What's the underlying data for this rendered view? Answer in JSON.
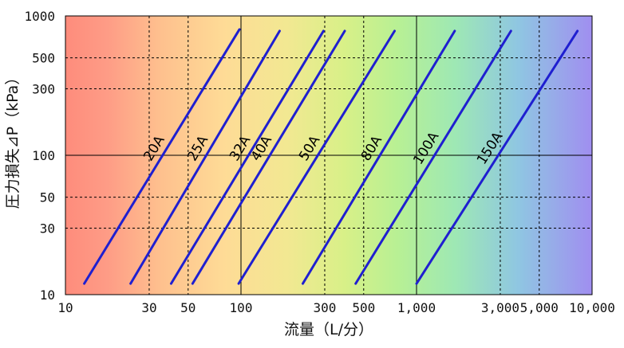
{
  "chart_data": {
    "type": "line",
    "xlabel": "流量（L/分）",
    "ylabel": "圧力損失⊿P（kPa）",
    "x_scale": "log",
    "y_scale": "log",
    "xlim": [
      10,
      10000
    ],
    "ylim": [
      10,
      1000
    ],
    "x_ticks": [
      10,
      30,
      50,
      100,
      300,
      500,
      1000,
      3000,
      5000,
      10000
    ],
    "x_tick_labels": [
      "10",
      "30",
      "50",
      "100",
      "300",
      "500",
      "1,000",
      "3,000",
      "5,000",
      "10,000"
    ],
    "y_ticks": [
      10,
      30,
      50,
      100,
      300,
      500,
      1000
    ],
    "y_tick_labels": [
      "10",
      "30",
      "50",
      "100",
      "300",
      "500",
      "1000"
    ],
    "grid": true,
    "background": "rainbow gradient red to violet",
    "series": [
      {
        "name": "20A",
        "x": [
          12.8,
          98
        ],
        "y": [
          12,
          800
        ]
      },
      {
        "name": "25A",
        "x": [
          23.5,
          166
        ],
        "y": [
          12,
          780
        ]
      },
      {
        "name": "32A",
        "x": [
          40,
          295
        ],
        "y": [
          12,
          780
        ]
      },
      {
        "name": "40A",
        "x": [
          53,
          390
        ],
        "y": [
          12,
          780
        ]
      },
      {
        "name": "50A",
        "x": [
          97,
          750
        ],
        "y": [
          12,
          780
        ]
      },
      {
        "name": "80A",
        "x": [
          225,
          1650
        ],
        "y": [
          12,
          780
        ]
      },
      {
        "name": "100A",
        "x": [
          450,
          3450
        ],
        "y": [
          12,
          780
        ]
      },
      {
        "name": "150A",
        "x": [
          1000,
          8250
        ],
        "y": [
          12,
          780
        ]
      }
    ],
    "colors": {
      "series": "#1f1fd0"
    }
  }
}
